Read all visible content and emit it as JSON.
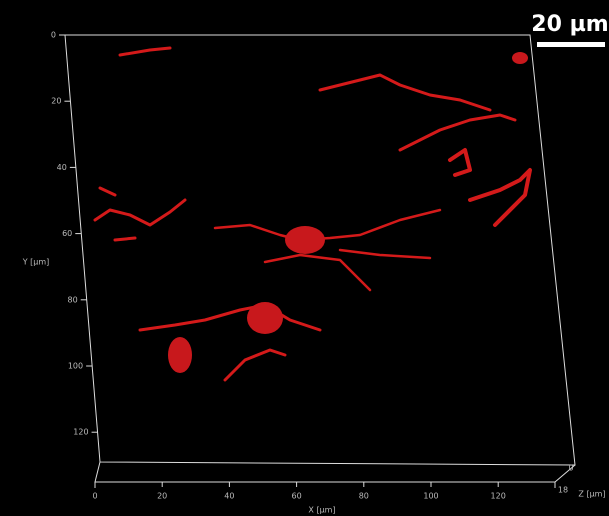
{
  "scale_bar": "20 µm",
  "axes": {
    "y": {
      "label": "Y [µm]",
      "ticks": [
        "0",
        "20",
        "40",
        "60",
        "80",
        "100",
        "120"
      ]
    },
    "x": {
      "label": "X [µm]",
      "ticks": [
        "0",
        "20",
        "40",
        "60",
        "80",
        "100",
        "120"
      ]
    },
    "z": {
      "label": "Z [µm]",
      "ticks": [
        "0",
        "18"
      ]
    }
  }
}
